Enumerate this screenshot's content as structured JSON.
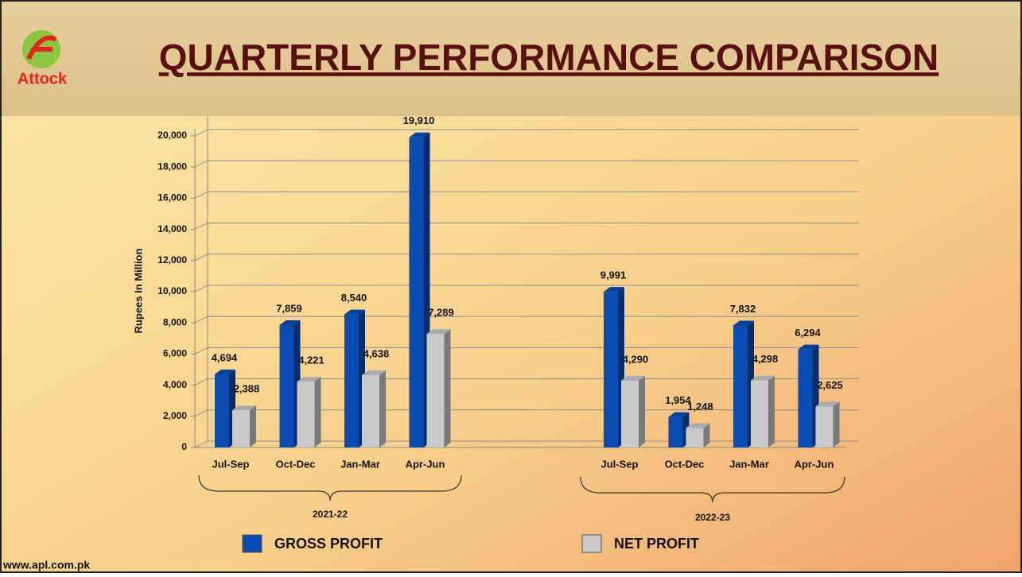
{
  "logo": "Attock",
  "footer": "www.apl.com.pk",
  "chart_data": {
    "type": "bar3d",
    "title": "QUARTERLY PERFORMANCE COMPARISON",
    "y_label": "Rupees In Million",
    "categories": [
      "Jul-Sep",
      "Oct-Dec",
      "Jan-Mar",
      "Apr-Jun",
      null,
      null,
      "Jul-Sep",
      "Oct-Dec",
      "Jan-Mar",
      "Apr-Jun"
    ],
    "group_labels": [
      "2021-22",
      "2022-23"
    ],
    "series": [
      {
        "name": "GROSS PROFIT",
        "color": "#0b4cb3",
        "values": [
          4694,
          7859,
          8540,
          19910,
          null,
          null,
          9991,
          1954,
          7832,
          6294
        ],
        "value_labels": [
          "4,694",
          "7,859",
          "8,540",
          "19,910",
          null,
          null,
          "9,991",
          "1,954",
          "7,832",
          "6,294"
        ]
      },
      {
        "name": "NET PROFIT",
        "color": "#c9c9c9",
        "values": [
          2388,
          4221,
          4638,
          7289,
          null,
          null,
          4290,
          1248,
          4298,
          2625
        ],
        "value_labels": [
          "2,388",
          "4,221",
          "4,638",
          "7,289",
          null,
          null,
          "4,290",
          "1,248",
          "4,298",
          "2,625"
        ]
      }
    ],
    "ylim": [
      0,
      20000
    ],
    "yticks": [
      0,
      {
        "value": 2000,
        "label": "2,000"
      },
      {
        "value": 4000,
        "label": "4,000"
      },
      {
        "value": 6000,
        "label": "6,000"
      },
      {
        "value": 8000,
        "label": "8,000"
      },
      {
        "value": 10000,
        "label": "10,000"
      },
      {
        "value": 12000,
        "label": "12,000"
      },
      {
        "value": 14000,
        "label": "14,000"
      },
      {
        "value": 16000,
        "label": "16,000"
      },
      {
        "value": 18000,
        "label": "18,000"
      },
      {
        "value": 20000,
        "label": "20,000"
      }
    ],
    "grid": true
  }
}
